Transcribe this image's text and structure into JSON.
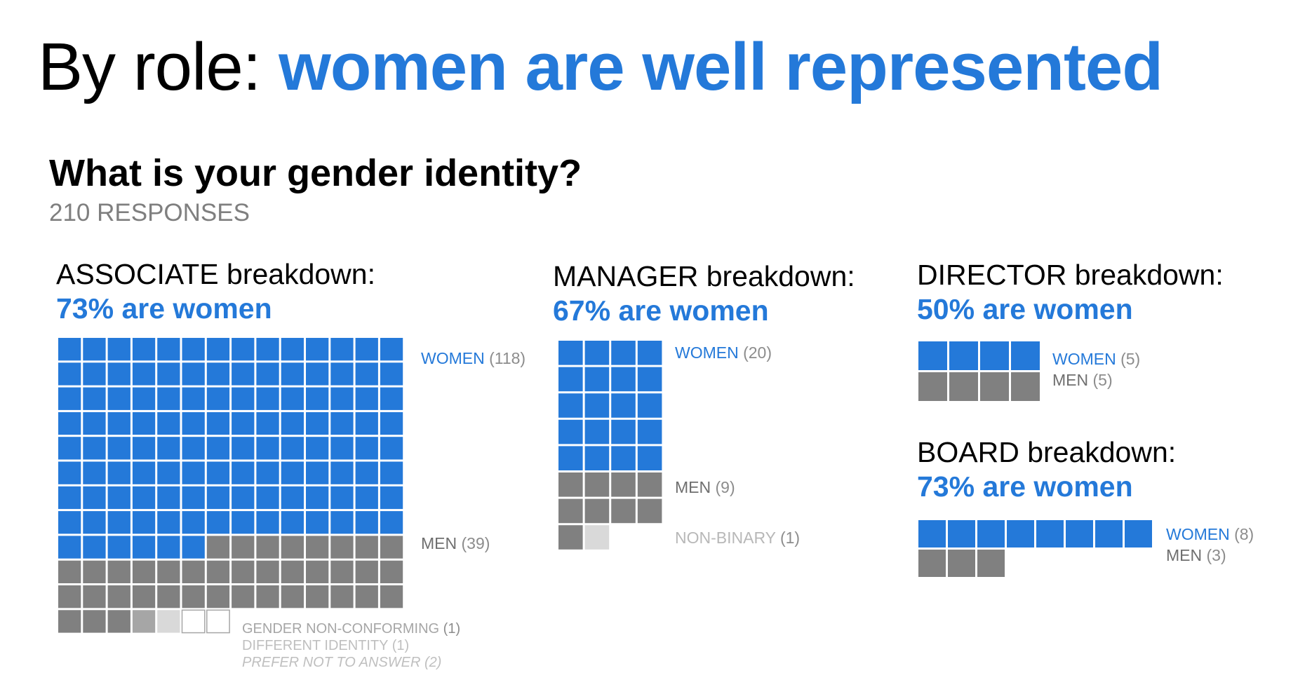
{
  "headline": {
    "lead": "By role: ",
    "accent": "women are well represented"
  },
  "question": "What is your gender identity?",
  "responses": "210 RESPONSES",
  "colors": {
    "women": "#2479d9",
    "men": "#808080",
    "other": "#d9d9d9",
    "accent_text": "#2479d9"
  },
  "panels": {
    "associate": {
      "role": "ASSOCIATE breakdown:",
      "pct": "73% are women",
      "labels": {
        "women": {
          "name": "WOMEN",
          "count": "(118)"
        },
        "men": {
          "name": "MEN",
          "count": "(39)"
        },
        "gnc": {
          "name": "GENDER NON-CONFORMING",
          "count": "(1)"
        },
        "did": {
          "name": "DIFFERENT IDENTITY (1)"
        },
        "pna": {
          "name": "PREFER NOT TO ANSWER  (2)"
        }
      }
    },
    "manager": {
      "role": "MANAGER breakdown:",
      "pct": "67% are women",
      "labels": {
        "women": {
          "name": "WOMEN",
          "count": "(20)"
        },
        "men": {
          "name": "MEN",
          "count": "(9)"
        },
        "nb": {
          "name": "NON-BINARY",
          "count": "(1)"
        }
      }
    },
    "director": {
      "role": "DIRECTOR breakdown:",
      "pct": "50% are women",
      "labels": {
        "women": {
          "name": "WOMEN",
          "count": "(5)"
        },
        "men": {
          "name": "MEN",
          "count": "(5)"
        }
      }
    },
    "board": {
      "role": "BOARD breakdown:",
      "pct": "73% are women",
      "labels": {
        "women": {
          "name": "WOMEN",
          "count": "(8)"
        },
        "men": {
          "name": "MEN",
          "count": "(3)"
        }
      }
    }
  },
  "chart_data": [
    {
      "type": "waffle",
      "title": "ASSOCIATE breakdown:",
      "subtitle": "73% are women",
      "columns": 14,
      "categories": [
        "WOMEN",
        "MEN",
        "GENDER NON-CONFORMING",
        "DIFFERENT IDENTITY",
        "PREFER NOT TO ANSWER"
      ],
      "values": [
        118,
        39,
        1,
        1,
        2
      ],
      "visible_cells": [
        118,
        39,
        1,
        1,
        2
      ]
    },
    {
      "type": "waffle",
      "title": "MANAGER breakdown:",
      "subtitle": "67% are women",
      "columns": 4,
      "categories": [
        "WOMEN",
        "MEN",
        "NON-BINARY"
      ],
      "values": [
        20,
        9,
        1
      ]
    },
    {
      "type": "waffle",
      "title": "DIRECTOR breakdown:",
      "subtitle": "50% are women",
      "columns": 4,
      "categories": [
        "WOMEN",
        "MEN"
      ],
      "values": [
        5,
        5
      ],
      "visible_cells": [
        4,
        4
      ]
    },
    {
      "type": "waffle",
      "title": "BOARD breakdown:",
      "subtitle": "73% are women",
      "columns": 8,
      "categories": [
        "WOMEN",
        "MEN"
      ],
      "values": [
        8,
        3
      ]
    }
  ]
}
